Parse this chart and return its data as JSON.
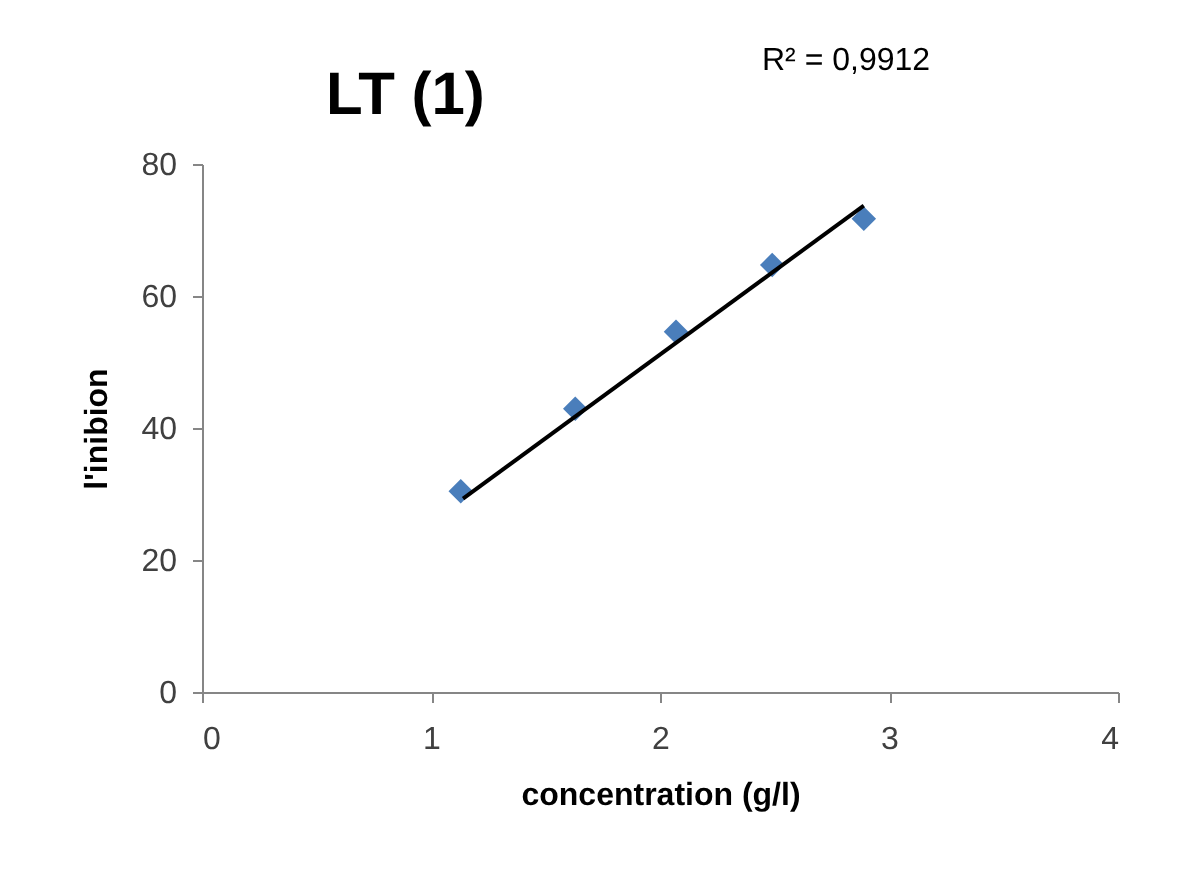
{
  "chart_data": {
    "type": "scatter",
    "title": "LT (1)",
    "xlabel": "concentration (g/l)",
    "ylabel": "l'inibion",
    "annotations": [
      "R² = 0,9912"
    ],
    "xlim": [
      0,
      4
    ],
    "xticks": [
      0,
      1,
      2,
      3,
      4
    ],
    "ylim": [
      0,
      80
    ],
    "yticks": [
      0,
      20,
      40,
      60,
      80
    ],
    "grid": false,
    "marker": "diamond",
    "series": [
      {
        "color": "#4a7ebb",
        "x": [
          1.13,
          1.63,
          2.07,
          2.49,
          2.89
        ],
        "values": [
          30.4,
          42.9,
          54.6,
          64.7,
          71.7
        ]
      },
      {
        "type": "line",
        "color": "#000000",
        "x": [
          1.14,
          2.89
        ],
        "values": [
          29.3,
          73.7
        ],
        "marker": "none",
        "line_style": "solid"
      }
    ]
  }
}
